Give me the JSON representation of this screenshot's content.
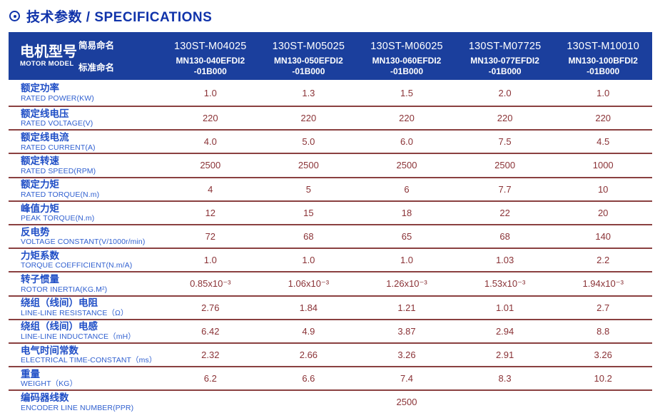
{
  "title": {
    "icon": "circled-dot-icon",
    "text": "技术参数 / SPECIFICATIONS"
  },
  "colors": {
    "header_bg": "#1b3f9d",
    "title_blue": "#1033aa",
    "label_blue": "#1f4ec6",
    "value_maroon": "#8a3236",
    "divider_maroon": "#8a4040"
  },
  "table": {
    "header": {
      "motor_model_zh": "电机型号",
      "motor_model_en": "MOTOR MODEL",
      "simple_name_label": "简易命名",
      "standard_name_label": "标准命名",
      "models": [
        {
          "simple": "130ST-M04025",
          "standard": "MN130-040EFDI2\n-01B000"
        },
        {
          "simple": "130ST-M05025",
          "standard": "MN130-050EFDI2\n-01B000"
        },
        {
          "simple": "130ST-M06025",
          "standard": "MN130-060EFDI2\n-01B000"
        },
        {
          "simple": "130ST-M07725",
          "standard": "MN130-077EFDI2\n-01B000"
        },
        {
          "simple": "130ST-M10010",
          "standard": "MN130-100BFDI2\n-01B000"
        }
      ]
    },
    "rows": [
      {
        "zh": "额定功率",
        "en": "RATED POWER(KW)",
        "values": [
          "1.0",
          "1.3",
          "1.5",
          "2.0",
          "1.0"
        ]
      },
      {
        "zh": "额定线电压",
        "en": "RATED VOLTAGE(V)",
        "values": [
          "220",
          "220",
          "220",
          "220",
          "220"
        ]
      },
      {
        "zh": "额定线电流",
        "en": "RATED CURRENT(A)",
        "values": [
          "4.0",
          "5.0",
          "6.0",
          "7.5",
          "4.5"
        ]
      },
      {
        "zh": "额定转速",
        "en": "RATED SPEED(RPM)",
        "values": [
          "2500",
          "2500",
          "2500",
          "2500",
          "1000"
        ]
      },
      {
        "zh": "额定力矩",
        "en": "RATED TORQUE(N.m)",
        "values": [
          "4",
          "5",
          "6",
          "7.7",
          "10"
        ]
      },
      {
        "zh": "峰值力矩",
        "en": "PEAK TORQUE(N.m)",
        "values": [
          "12",
          "15",
          "18",
          "22",
          "20"
        ]
      },
      {
        "zh": "反电势",
        "en": "VOLTAGE CONSTANT(V/1000r/min)",
        "values": [
          "72",
          "68",
          "65",
          "68",
          "140"
        ]
      },
      {
        "zh": "力矩系数",
        "en": "TORQUE COEFFICIENT(N.m/A)",
        "values": [
          "1.0",
          "1.0",
          "1.0",
          "1.03",
          "2.2"
        ]
      },
      {
        "zh": "转子惯量",
        "en": "ROTOR INERTIA(KG.M²)",
        "values": [
          "0.85x10⁻³",
          "1.06x10⁻³",
          "1.26x10⁻³",
          "1.53x10⁻³",
          "1.94x10⁻³"
        ]
      },
      {
        "zh": "绕组（线间）电阻",
        "en": "LINE-LINE RESISTANCE（Ω）",
        "values": [
          "2.76",
          "1.84",
          "1.21",
          "1.01",
          "2.7"
        ]
      },
      {
        "zh": "绕组（线间）电感",
        "en": "LINE-LINE INDUCTANCE（mH）",
        "values": [
          "6.42",
          "4.9",
          "3.87",
          "2.94",
          "8.8"
        ]
      },
      {
        "zh": "电气时间常数",
        "en": "ELECTRICAL TIME-CONSTANT（ms）",
        "values": [
          "2.32",
          "2.66",
          "3.26",
          "2.91",
          "3.26"
        ]
      },
      {
        "zh": "重量",
        "en": "WEIGHT（KG）",
        "values": [
          "6.2",
          "6.6",
          "7.4",
          "8.3",
          "10.2"
        ]
      }
    ],
    "merged_row": {
      "zh": "编码器线数",
      "en": "ENCODER LINE NUMBER(PPR)",
      "value": "2500"
    }
  }
}
